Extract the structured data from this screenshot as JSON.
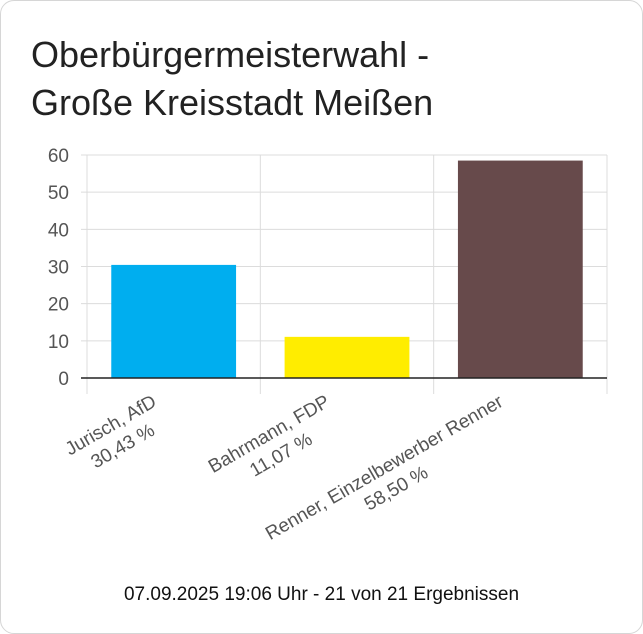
{
  "title": {
    "line1": "Oberbürgermeisterwahl -",
    "line2": "Große Kreisstadt Meißen"
  },
  "footer": "07.09.2025 19:06 Uhr - 21 von 21 Ergebnissen",
  "chart_data": {
    "type": "bar",
    "title": "Oberbürgermeisterwahl - Große Kreisstadt Meißen",
    "xlabel": "",
    "ylabel": "",
    "ylim": [
      0,
      60
    ],
    "yticks": [
      "0",
      "10",
      "20",
      "30",
      "40",
      "50",
      "60"
    ],
    "grid": true,
    "categories": [
      {
        "name": "Jurisch, AfD",
        "pct_label": "30,43 %",
        "value": 30.43,
        "color": "#00aeef"
      },
      {
        "name": "Bahrmann, FDP",
        "pct_label": "11,07 %",
        "value": 11.07,
        "color": "#ffed00"
      },
      {
        "name": "Renner, Einzelbewerber Renner",
        "pct_label": "58,50 %",
        "value": 58.5,
        "color": "#674a4b"
      }
    ]
  }
}
